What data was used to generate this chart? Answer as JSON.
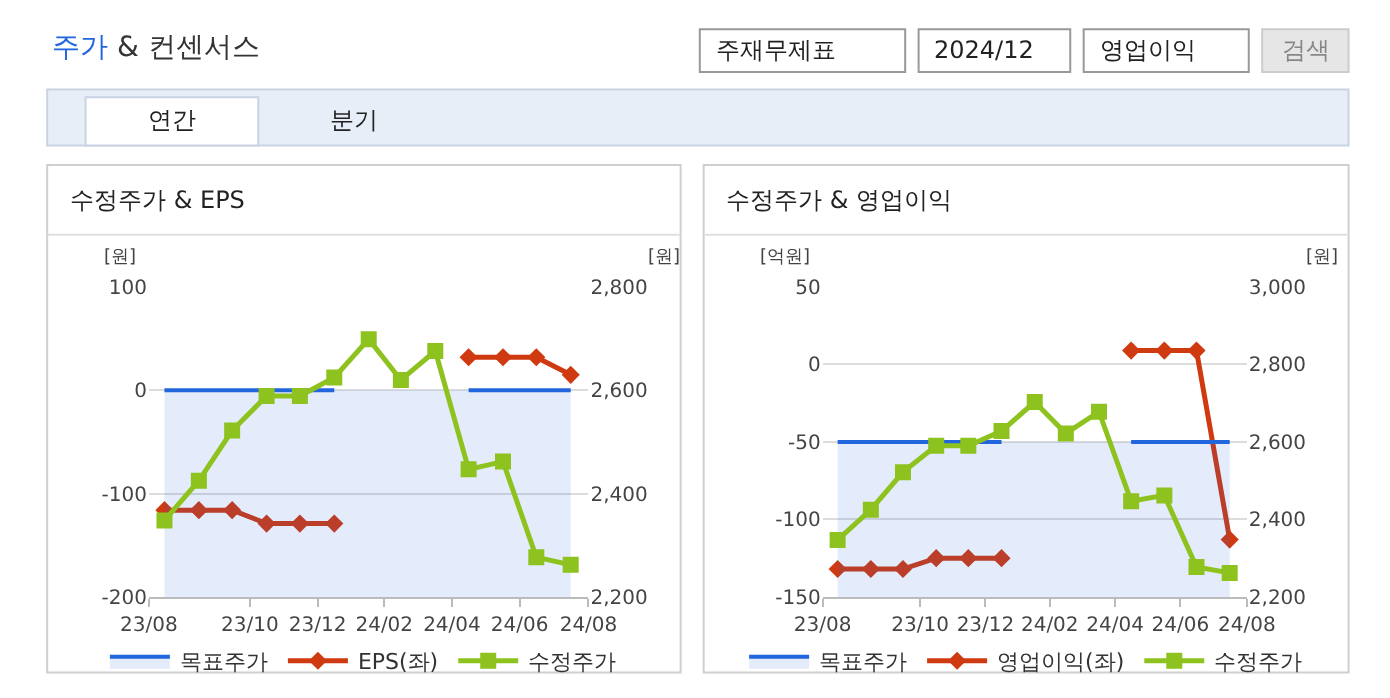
{
  "chart_data": [
    {
      "type": "other",
      "title": "주가 & 컨센서스",
      "annotations": [
        "주재무제표",
        "2024/12",
        "영업이익",
        "검색",
        "연간",
        "분기"
      ]
    },
    {
      "type": "line",
      "title": "수정주가 & EPS",
      "ylabel": "[원]",
      "y2label": "[원]",
      "x": [
        "2023-08-15",
        "2023-09-15",
        "2023-10-15",
        "2023-11-15",
        "2023-12-15",
        "2024-01-15",
        "2024-02-15",
        "2024-03-15",
        "2024-04-15",
        "2024-05-15",
        "2024-06-15",
        "2024-07-15",
        "2024-08-15"
      ],
      "xlim": [
        "2023-08-01",
        "2024-08-31"
      ],
      "xticks": [
        {
          "value": "2023-08-01",
          "label": "23/08"
        },
        {
          "value": "2023-10-31",
          "label": "23/10"
        },
        {
          "value": "2023-12-31",
          "label": "23/12"
        },
        {
          "value": "2024-02-29",
          "label": "24/02"
        },
        {
          "value": "2024-04-30",
          "label": "24/04"
        },
        {
          "value": "2024-06-30",
          "label": "24/06"
        },
        {
          "value": "2024-08-31",
          "label": "24/08"
        }
      ],
      "ylim": [
        -200,
        100
      ],
      "yticks": [
        -200,
        -100,
        0,
        100
      ],
      "y2lim": [
        2200,
        2800
      ],
      "y2ticks": [
        {
          "value": 2200,
          "label": "2,200"
        },
        {
          "value": 2400,
          "label": "2,400"
        },
        {
          "value": 2600,
          "label": "2,600"
        },
        {
          "value": 2800,
          "label": "2,800"
        }
      ],
      "grid": "y",
      "legend": "bottom",
      "series": [
        {
          "name": "목표주가",
          "type": "area",
          "axis": "y2",
          "color": "#2266dd",
          "marker": "none",
          "values": [
            2600,
            2600,
            2600,
            2600,
            2600,
            2600,
            null,
            null,
            null,
            2600,
            2600,
            2600,
            2600
          ]
        },
        {
          "name": "EPS(좌)",
          "type": "line",
          "color": "#d03a10",
          "marker": "diamond",
          "values": [
            -116,
            -116,
            -116,
            -129,
            -129,
            -129,
            null,
            null,
            null,
            32,
            32,
            32,
            15
          ]
        },
        {
          "name": "수정주가",
          "type": "line",
          "axis": "y2",
          "color": "#8dc21f",
          "marker": "square",
          "values": [
            2348,
            2425,
            2522,
            2589,
            2589,
            2625,
            2699,
            2620,
            2676,
            2447,
            2462,
            2277,
            2262
          ]
        }
      ]
    },
    {
      "type": "line",
      "title": "수정주가 & 영업이익",
      "ylabel": "[억원]",
      "y2label": "[원]",
      "x": [
        "2023-08-15",
        "2023-09-15",
        "2023-10-15",
        "2023-11-15",
        "2023-12-15",
        "2024-01-15",
        "2024-02-15",
        "2024-03-15",
        "2024-04-15",
        "2024-05-15",
        "2024-06-15",
        "2024-07-15",
        "2024-08-15"
      ],
      "xlim": [
        "2023-08-01",
        "2024-08-31"
      ],
      "xticks": [
        {
          "value": "2023-08-01",
          "label": "23/08"
        },
        {
          "value": "2023-10-31",
          "label": "23/10"
        },
        {
          "value": "2023-12-31",
          "label": "23/12"
        },
        {
          "value": "2024-02-29",
          "label": "24/02"
        },
        {
          "value": "2024-04-30",
          "label": "24/04"
        },
        {
          "value": "2024-06-30",
          "label": "24/06"
        },
        {
          "value": "2024-08-31",
          "label": "24/08"
        }
      ],
      "ylim": [
        -150,
        50
      ],
      "yticks": [
        -150,
        -100,
        -50,
        0,
        50
      ],
      "y2lim": [
        2200,
        3000
      ],
      "y2ticks": [
        {
          "value": 2200,
          "label": "2,200"
        },
        {
          "value": 2400,
          "label": "2,400"
        },
        {
          "value": 2600,
          "label": "2,600"
        },
        {
          "value": 2800,
          "label": "2,800"
        },
        {
          "value": 3000,
          "label": "3,000"
        }
      ],
      "grid": "y",
      "legend": "bottom",
      "series": [
        {
          "name": "목표주가",
          "type": "area",
          "axis": "y2",
          "color": "#2266dd",
          "marker": "none",
          "values": [
            2600,
            2600,
            2600,
            2600,
            2600,
            2600,
            null,
            null,
            null,
            2600,
            2600,
            2600,
            2600
          ]
        },
        {
          "name": "영업이익(좌)",
          "type": "line",
          "color": "#d03a10",
          "marker": "diamond",
          "values": [
            -132,
            -132,
            -132,
            -125,
            -125,
            -125,
            null,
            null,
            null,
            9,
            9,
            9,
            -113
          ]
        },
        {
          "name": "수정주가",
          "type": "line",
          "axis": "y2",
          "color": "#8dc21f",
          "marker": "square",
          "values": [
            2347,
            2425,
            2522,
            2590,
            2590,
            2628,
            2703,
            2622,
            2678,
            2447,
            2462,
            2277,
            2262
          ]
        }
      ]
    }
  ]
}
